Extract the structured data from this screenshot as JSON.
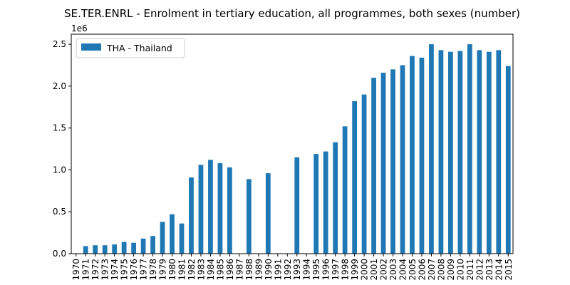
{
  "chart_data": {
    "type": "bar",
    "title": "SE.TER.ENRL - Enrolment in tertiary education, all programmes, both sexes (number)",
    "y_offset_label": "1e6",
    "ylim": [
      0,
      2.62
    ],
    "yticks": [
      0.0,
      0.5,
      1.0,
      1.5,
      2.0,
      2.5
    ],
    "ytick_labels": [
      "0.0",
      "0.5",
      "1.0",
      "1.5",
      "2.0",
      "2.5"
    ],
    "categories": [
      "1970",
      "1971",
      "1972",
      "1973",
      "1974",
      "1975",
      "1976",
      "1977",
      "1978",
      "1979",
      "1980",
      "1981",
      "1982",
      "1983",
      "1984",
      "1985",
      "1986",
      "1987",
      "1988",
      "1989",
      "1990",
      "1991",
      "1992",
      "1993",
      "1994",
      "1995",
      "1996",
      "1997",
      "1998",
      "1999",
      "2000",
      "2001",
      "2002",
      "2003",
      "2004",
      "2005",
      "2006",
      "2007",
      "2008",
      "2009",
      "2010",
      "2011",
      "2012",
      "2013",
      "2014",
      "2015"
    ],
    "series": [
      {
        "name": "THA - Thailand",
        "color": "#1f77b4",
        "values": [
          null,
          0.09,
          0.1,
          0.1,
          0.11,
          0.14,
          0.13,
          0.18,
          0.21,
          0.38,
          0.47,
          0.36,
          0.91,
          1.06,
          1.12,
          1.08,
          1.03,
          null,
          0.89,
          null,
          0.96,
          null,
          null,
          1.15,
          null,
          1.19,
          1.22,
          1.33,
          1.52,
          1.82,
          1.9,
          2.1,
          2.16,
          2.2,
          2.25,
          2.36,
          2.34,
          2.5,
          2.43,
          2.41,
          2.42,
          2.5,
          2.43,
          2.41,
          2.43,
          2.24
        ]
      }
    ],
    "legend": {
      "position": "top-left"
    },
    "grid": false
  }
}
